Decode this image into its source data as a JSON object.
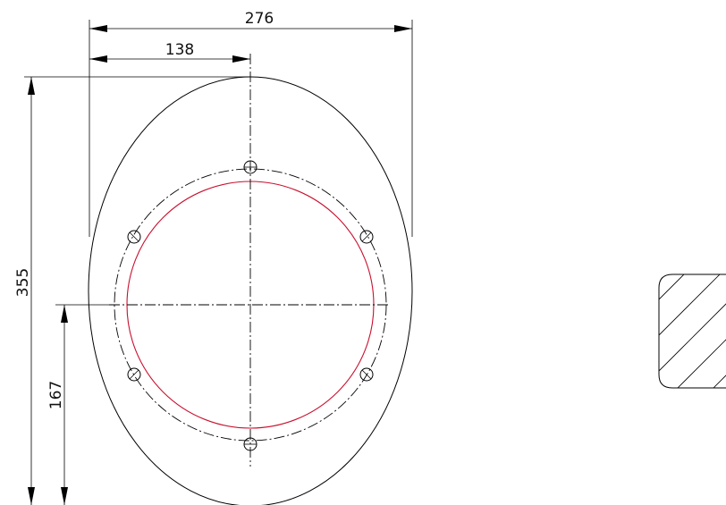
{
  "drawing": {
    "dimensions": {
      "overall_width": "276",
      "half_width": "138",
      "overall_height": "355",
      "center_height": "167"
    },
    "bolt_hole_count": 6,
    "colors": {
      "lines": "#000000",
      "seal_ring": "#c8102e",
      "background": "#ffffff"
    }
  }
}
